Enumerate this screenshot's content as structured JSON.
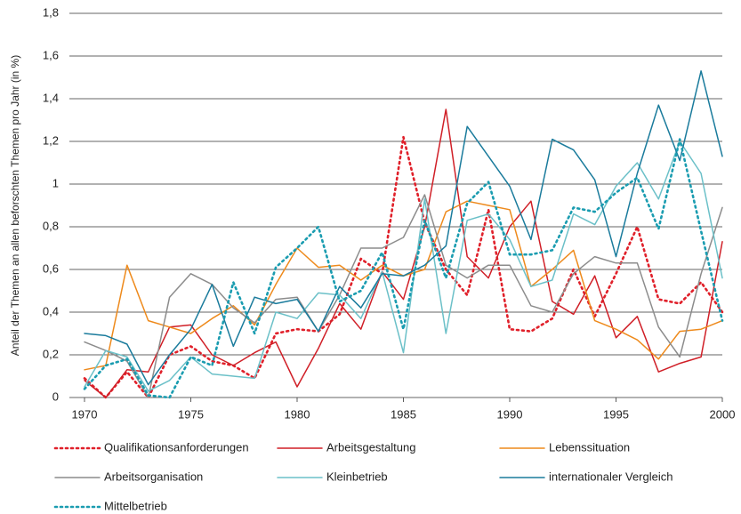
{
  "chart_data": {
    "type": "line",
    "y_label": "Anteil der Themen an allen beforschten Themen pro Jahr (in %)",
    "x": [
      1970,
      1971,
      1972,
      1973,
      1974,
      1975,
      1976,
      1977,
      1978,
      1979,
      1980,
      1981,
      1982,
      1983,
      1984,
      1985,
      1986,
      1987,
      1988,
      1989,
      1990,
      1991,
      1992,
      1993,
      1994,
      1995,
      1996,
      1997,
      1998,
      1999,
      2000
    ],
    "xlim": [
      1970,
      2000
    ],
    "xticks": [
      1970,
      1975,
      1980,
      1985,
      1990,
      1995,
      2000
    ],
    "ylim": [
      0,
      1.8
    ],
    "yticks": [
      0,
      {
        "value": 0.2,
        "label": "0,2"
      },
      {
        "value": 0.4,
        "label": "0,4"
      },
      {
        "value": 0.6,
        "label": "0,6"
      },
      {
        "value": 0.8,
        "label": "0,8"
      },
      1,
      {
        "value": 1.2,
        "label": "1,2"
      },
      {
        "value": 1.4,
        "label": "1,4"
      },
      {
        "value": 1.6,
        "label": "1,6"
      },
      {
        "value": 1.8,
        "label": "1,8"
      }
    ],
    "grid": true,
    "series": [
      {
        "name": "Qualifikationsanforderungen",
        "color": "#e0202a",
        "line_style": "dotted",
        "values": [
          0.09,
          0.0,
          0.12,
          0.0,
          0.2,
          0.24,
          0.17,
          0.15,
          0.09,
          0.3,
          0.32,
          0.31,
          0.39,
          0.65,
          0.58,
          1.22,
          0.82,
          0.6,
          0.48,
          0.88,
          0.32,
          0.31,
          0.37,
          0.6,
          0.38,
          0.58,
          0.8,
          0.46,
          0.44,
          0.54,
          0.4
        ]
      },
      {
        "name": "Arbeitsgestaltung",
        "color": "#d01f27",
        "line_style": "solid",
        "values": [
          0.08,
          0.0,
          0.13,
          0.12,
          0.33,
          0.34,
          0.2,
          0.15,
          0.21,
          0.26,
          0.05,
          0.23,
          0.44,
          0.32,
          0.59,
          0.46,
          0.8,
          1.35,
          0.66,
          0.56,
          0.8,
          0.92,
          0.45,
          0.39,
          0.57,
          0.28,
          0.38,
          0.12,
          0.16,
          0.19,
          0.73
        ]
      },
      {
        "name": "Lebenssituation",
        "color": "#ee8a1c",
        "line_style": "solid",
        "values": [
          0.13,
          0.15,
          0.62,
          0.36,
          0.33,
          0.3,
          0.37,
          0.43,
          0.34,
          0.53,
          0.7,
          0.61,
          0.62,
          0.55,
          0.62,
          0.57,
          0.6,
          0.87,
          0.92,
          0.9,
          0.88,
          0.52,
          0.6,
          0.69,
          0.36,
          0.32,
          0.27,
          0.18,
          0.31,
          0.32,
          0.36
        ]
      },
      {
        "name": "Arbeitsorganisation",
        "color": "#8c8c8c",
        "line_style": "solid",
        "values": [
          0.26,
          0.22,
          0.17,
          0.0,
          0.47,
          0.58,
          0.53,
          0.42,
          0.35,
          0.46,
          0.47,
          0.31,
          0.48,
          0.7,
          0.7,
          0.75,
          0.95,
          0.62,
          0.56,
          0.62,
          0.62,
          0.43,
          0.4,
          0.58,
          0.66,
          0.63,
          0.63,
          0.33,
          0.19,
          0.58,
          0.89
        ]
      },
      {
        "name": "Kleinbetrieb",
        "color": "#6bc0c8",
        "line_style": "solid",
        "values": [
          0.05,
          0.22,
          0.19,
          0.03,
          0.08,
          0.19,
          0.11,
          0.1,
          0.09,
          0.4,
          0.37,
          0.49,
          0.48,
          0.37,
          0.59,
          0.21,
          0.93,
          0.3,
          0.83,
          0.86,
          0.74,
          0.52,
          0.55,
          0.86,
          0.81,
          0.99,
          1.1,
          0.93,
          1.2,
          1.05,
          0.56
        ]
      },
      {
        "name": "internationaler Vergleich",
        "color": "#1a7b9c",
        "line_style": "solid",
        "values": [
          0.3,
          0.29,
          0.25,
          0.06,
          0.2,
          0.32,
          0.53,
          0.24,
          0.47,
          0.44,
          0.46,
          0.31,
          0.52,
          0.42,
          0.58,
          0.57,
          0.62,
          0.71,
          1.27,
          1.13,
          0.99,
          0.74,
          1.21,
          1.16,
          1.02,
          0.66,
          1.05,
          1.37,
          1.11,
          1.53,
          1.13
        ]
      },
      {
        "name": "Mittelbetrieb",
        "color": "#1a9cb0",
        "line_style": "dotted",
        "values": [
          0.04,
          0.15,
          0.18,
          0.01,
          0.0,
          0.19,
          0.15,
          0.54,
          0.3,
          0.61,
          0.7,
          0.8,
          0.45,
          0.5,
          0.68,
          0.32,
          0.83,
          0.56,
          0.91,
          1.01,
          0.67,
          0.67,
          0.69,
          0.89,
          0.87,
          0.96,
          1.03,
          0.79,
          1.21,
          0.78,
          0.36
        ]
      }
    ]
  }
}
